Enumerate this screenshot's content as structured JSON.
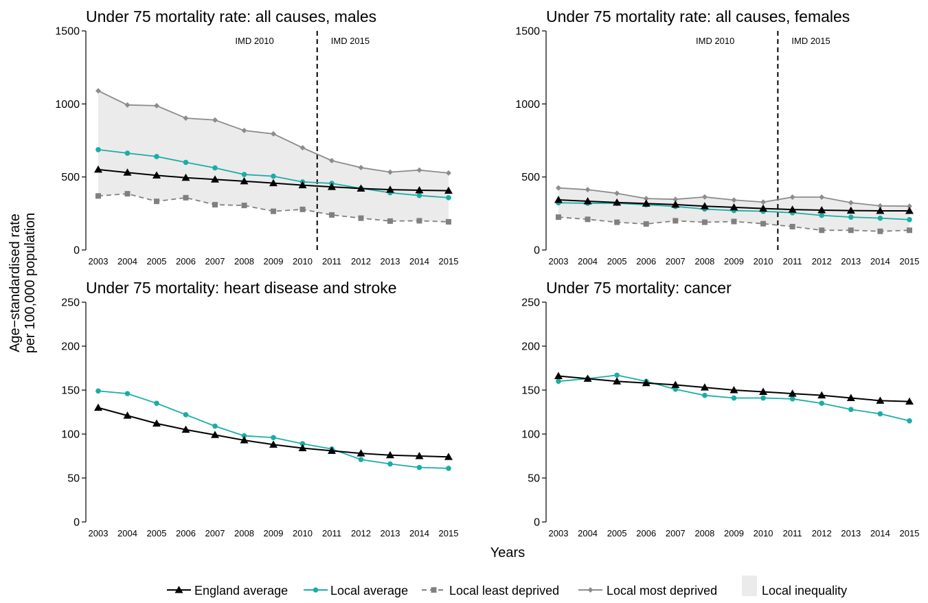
{
  "figure": {
    "ylabel_line1": "Age−standardised rate",
    "ylabel_line2": "per 100,000 population",
    "xlabel": "Years"
  },
  "legend": {
    "items": [
      {
        "key": "england",
        "label": "England average"
      },
      {
        "key": "local",
        "label": "Local average"
      },
      {
        "key": "least",
        "label": "Local least deprived"
      },
      {
        "key": "most",
        "label": "Local most deprived"
      },
      {
        "key": "inequality",
        "label": "Local inequality"
      }
    ]
  },
  "styles": {
    "england": {
      "color": "#000000",
      "marker": "triangle",
      "dash": "none"
    },
    "local": {
      "color": "#1aada6",
      "marker": "circle",
      "dash": "none"
    },
    "least": {
      "color": "#808080",
      "marker": "square",
      "dash": "dashed"
    },
    "most": {
      "color": "#8c8c8c",
      "marker": "diamond",
      "dash": "none"
    },
    "inequality": {
      "color": "#ebebeb"
    }
  },
  "chart_data": [
    {
      "type": "line",
      "title": "Under 75 mortality rate: all causes, males",
      "x": [
        2003,
        2004,
        2005,
        2006,
        2007,
        2008,
        2009,
        2010,
        2011,
        2012,
        2013,
        2014,
        2015
      ],
      "ylim": [
        0,
        1500
      ],
      "yticks": [
        0,
        500,
        1000,
        1500
      ],
      "vline": {
        "x": 2010.5,
        "left_label": "IMD 2010",
        "right_label": "IMD 2015"
      },
      "band": {
        "lower": "least",
        "upper": "most"
      },
      "series": [
        {
          "key": "most",
          "name": "Local most deprived",
          "values": [
            1090,
            993,
            988,
            903,
            890,
            818,
            795,
            700,
            612,
            564,
            533,
            547,
            527
          ]
        },
        {
          "key": "least",
          "name": "Local least deprived",
          "values": [
            370,
            385,
            333,
            358,
            310,
            305,
            265,
            278,
            240,
            218,
            198,
            200,
            193
          ]
        },
        {
          "key": "local",
          "name": "Local average",
          "values": [
            687,
            663,
            640,
            600,
            562,
            517,
            505,
            466,
            456,
            422,
            392,
            373,
            358
          ]
        },
        {
          "key": "england",
          "name": "England average",
          "values": [
            551,
            530,
            511,
            495,
            483,
            471,
            458,
            444,
            432,
            421,
            413,
            409,
            406
          ]
        }
      ]
    },
    {
      "type": "line",
      "title": "Under 75 mortality rate: all causes, females",
      "x": [
        2003,
        2004,
        2005,
        2006,
        2007,
        2008,
        2009,
        2010,
        2011,
        2012,
        2013,
        2014,
        2015
      ],
      "ylim": [
        0,
        1500
      ],
      "yticks": [
        0,
        500,
        1000,
        1500
      ],
      "vline": {
        "x": 2010.5,
        "left_label": "IMD 2010",
        "right_label": "IMD 2015"
      },
      "band": {
        "lower": "least",
        "upper": "most"
      },
      "series": [
        {
          "key": "most",
          "name": "Local most deprived",
          "values": [
            425,
            413,
            388,
            352,
            347,
            363,
            342,
            328,
            362,
            362,
            324,
            302,
            300
          ]
        },
        {
          "key": "least",
          "name": "Local least deprived",
          "values": [
            225,
            210,
            190,
            178,
            200,
            190,
            195,
            180,
            160,
            135,
            135,
            128,
            135
          ]
        },
        {
          "key": "local",
          "name": "Local average",
          "values": [
            323,
            320,
            320,
            310,
            298,
            280,
            270,
            265,
            255,
            237,
            225,
            218,
            208
          ]
        },
        {
          "key": "england",
          "name": "England average",
          "values": [
            343,
            334,
            325,
            318,
            311,
            300,
            292,
            284,
            277,
            273,
            270,
            268,
            268
          ]
        }
      ]
    },
    {
      "type": "line",
      "title": "Under 75 mortality: heart disease and stroke",
      "x": [
        2003,
        2004,
        2005,
        2006,
        2007,
        2008,
        2009,
        2010,
        2011,
        2012,
        2013,
        2014,
        2015
      ],
      "ylim": [
        0,
        250
      ],
      "yticks": [
        0,
        50,
        100,
        150,
        200,
        250
      ],
      "series": [
        {
          "key": "local",
          "name": "Local average",
          "values": [
            149,
            146,
            135,
            122,
            109,
            98,
            96,
            89,
            83,
            71,
            66,
            62,
            61
          ]
        },
        {
          "key": "england",
          "name": "England average",
          "values": [
            130,
            121,
            112,
            105,
            99,
            93,
            88,
            84,
            81,
            78,
            76,
            75,
            74
          ]
        }
      ]
    },
    {
      "type": "line",
      "title": "Under 75 mortality: cancer",
      "x": [
        2003,
        2004,
        2005,
        2006,
        2007,
        2008,
        2009,
        2010,
        2011,
        2012,
        2013,
        2014,
        2015
      ],
      "ylim": [
        0,
        250
      ],
      "yticks": [
        0,
        50,
        100,
        150,
        200,
        250
      ],
      "series": [
        {
          "key": "local",
          "name": "Local average",
          "values": [
            160,
            163,
            167,
            160,
            151,
            144,
            141,
            141,
            140,
            135,
            128,
            123,
            115
          ]
        },
        {
          "key": "england",
          "name": "England average",
          "values": [
            166,
            163,
            160,
            158,
            156,
            153,
            150,
            148,
            146,
            144,
            141,
            138,
            137
          ]
        }
      ]
    }
  ]
}
